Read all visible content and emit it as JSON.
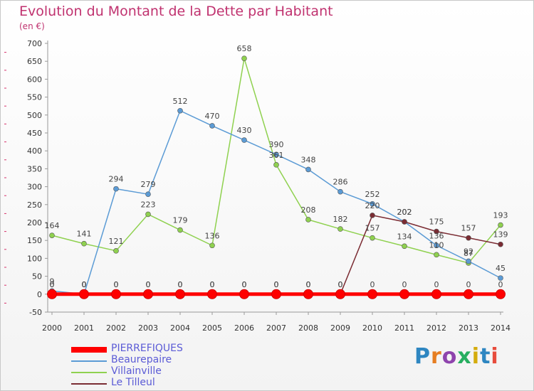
{
  "title": "Evolution du Montant de la Dette par Habitant",
  "subtitle": "(en €)",
  "brand": {
    "text": "Proxiti",
    "colors": [
      "#2e86c1",
      "#e67e22",
      "#8e44ad",
      "#27ae60",
      "#d4ac0d",
      "#2e86c1",
      "#e74c3c"
    ]
  },
  "chart_data": {
    "type": "line",
    "title": "Evolution du Montant de la Dette par Habitant",
    "subtitle": "(en €)",
    "xlabel": "",
    "ylabel": "",
    "x": [
      "2000",
      "2001",
      "2002",
      "2003",
      "2004",
      "2005",
      "2006",
      "2007",
      "2008",
      "2009",
      "2010",
      "2011",
      "2012",
      "2013",
      "2014"
    ],
    "ylim": [
      -50,
      700
    ],
    "yticks": [
      -50,
      0,
      50,
      100,
      150,
      200,
      250,
      300,
      350,
      400,
      450,
      500,
      550,
      600,
      650,
      700
    ],
    "grid": false,
    "legend": "bottom-left",
    "series": [
      {
        "name": "PIERREFIQUES",
        "color": "#ff0000",
        "values": [
          0,
          0,
          0,
          0,
          0,
          0,
          0,
          0,
          0,
          0,
          0,
          0,
          0,
          0,
          0
        ],
        "labels": [
          "0",
          "0",
          "0",
          "0",
          "0",
          "0",
          "0",
          "0",
          "0",
          "0",
          "0",
          "0",
          "0",
          "0",
          "0"
        ]
      },
      {
        "name": "Beaurepaire",
        "color": "#5b9bd5",
        "values": [
          9,
          0,
          294,
          279,
          512,
          470,
          430,
          390,
          348,
          286,
          252,
          202,
          136,
          92,
          45
        ],
        "labels": [
          "9",
          "0",
          "294",
          "279",
          "512",
          "470",
          "430",
          "390",
          "348",
          "286",
          "252",
          "202",
          "136",
          "92",
          "45"
        ]
      },
      {
        "name": "Villainville",
        "color": "#8fd14f",
        "values": [
          164,
          141,
          121,
          223,
          179,
          136,
          658,
          361,
          208,
          182,
          157,
          134,
          110,
          87,
          193
        ],
        "labels": [
          "164",
          "141",
          "121",
          "223",
          "179",
          "136",
          "658",
          "361",
          "208",
          "182",
          "157",
          "134",
          "110",
          "87",
          "193"
        ]
      },
      {
        "name": "Le Tilleul",
        "color": "#7b2c33",
        "values": [
          0,
          0,
          0,
          0,
          0,
          0,
          0,
          0,
          0,
          0,
          220,
          202,
          175,
          157,
          139
        ],
        "labels": [
          "0",
          "0",
          "0",
          "0",
          "0",
          "0",
          "0",
          "0",
          "0",
          "0",
          "220",
          "202",
          "175",
          "157",
          "139"
        ]
      }
    ]
  }
}
